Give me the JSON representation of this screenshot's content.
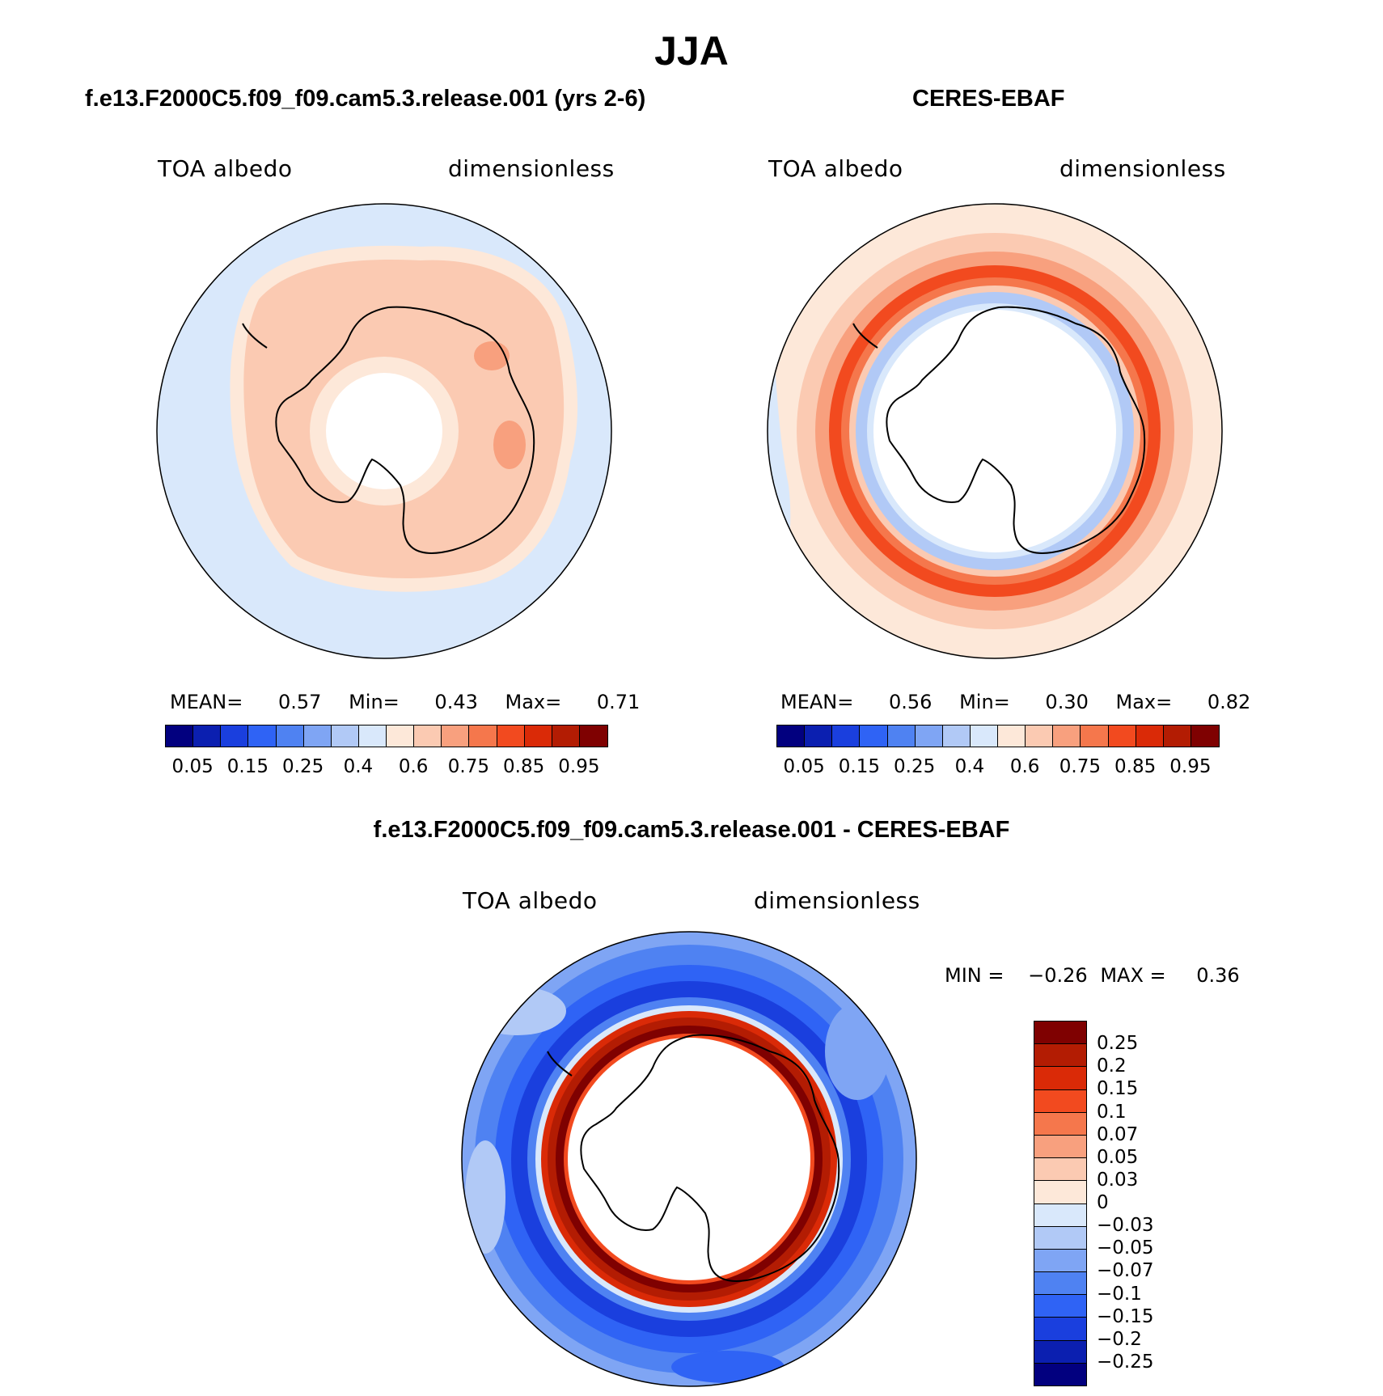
{
  "figure": {
    "title": "JJA",
    "variable": "TOA albedo",
    "units": "dimensionless"
  },
  "panels": [
    {
      "title": "f.e13.F2000C5.f09_f09.cam5.3.release.001 (yrs 2-6)",
      "mean_label": "MEAN=",
      "mean": "0.57",
      "min_label": "Min=",
      "min": "0.43",
      "max_label": "Max=",
      "max": "0.71"
    },
    {
      "title": "CERES-EBAF",
      "mean_label": "MEAN=",
      "mean": "0.56",
      "min_label": "Min=",
      "min": "0.30",
      "max_label": "Max=",
      "max": "0.82"
    },
    {
      "title": "f.e13.F2000C5.f09_f09.cam5.3.release.001 - CERES-EBAF",
      "min_label": "MIN =",
      "min": "−0.26",
      "max_label": "MAX =",
      "max": "0.36"
    }
  ],
  "colorbar_abs": {
    "colors": [
      "#02007f",
      "#0b1fb0",
      "#1a3fde",
      "#2f63f5",
      "#4f82f2",
      "#7fa5f4",
      "#b1c9f6",
      "#d9e8fb",
      "#fde8d9",
      "#fbcab2",
      "#f8a07e",
      "#f5774c",
      "#f24a1f",
      "#da2a07",
      "#b31c03",
      "#7f0101"
    ],
    "labels": [
      "0.05",
      "0.15",
      "0.25",
      "0.4",
      "0.6",
      "0.75",
      "0.85",
      "0.95"
    ]
  },
  "colorbar_diff": {
    "colors": [
      "#7f0101",
      "#b31c03",
      "#da2a07",
      "#f24a1f",
      "#f5774c",
      "#f8a07e",
      "#fbcab2",
      "#fde8d9",
      "#d9e8fb",
      "#b1c9f6",
      "#7fa5f4",
      "#4f82f2",
      "#2f63f5",
      "#1a3fde",
      "#0b1fb0",
      "#02007f"
    ],
    "labels": [
      "0.25",
      "0.2",
      "0.15",
      "0.1",
      "0.07",
      "0.05",
      "0.03",
      "0",
      "−0.03",
      "−0.05",
      "−0.07",
      "−0.1",
      "−0.15",
      "−0.2",
      "−0.25"
    ]
  }
}
